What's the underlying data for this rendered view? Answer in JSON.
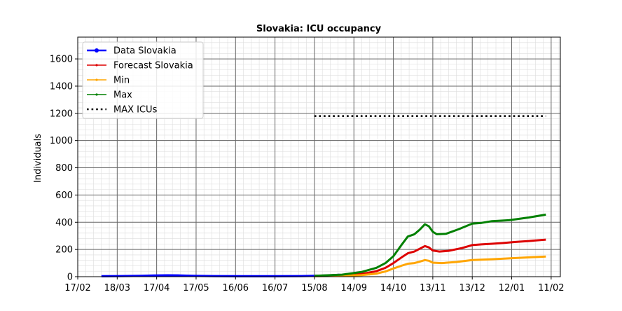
{
  "chart_data": {
    "type": "line",
    "title": "Slovakia: ICU occupancy",
    "ylabel": "Individuals",
    "xlabel": "",
    "ylim": [
      0,
      1760
    ],
    "xlim": [
      "2020-02-17",
      "2021-02-18"
    ],
    "y_ticks": [
      0,
      200,
      400,
      600,
      800,
      1000,
      1200,
      1400,
      1600
    ],
    "x_ticks": [
      {
        "date": "2020-02-17",
        "label": "17/02"
      },
      {
        "date": "2020-03-18",
        "label": "18/03"
      },
      {
        "date": "2020-04-17",
        "label": "17/04"
      },
      {
        "date": "2020-05-17",
        "label": "17/05"
      },
      {
        "date": "2020-06-16",
        "label": "16/06"
      },
      {
        "date": "2020-07-16",
        "label": "16/07"
      },
      {
        "date": "2020-08-15",
        "label": "15/08"
      },
      {
        "date": "2020-09-14",
        "label": "14/09"
      },
      {
        "date": "2020-10-14",
        "label": "14/10"
      },
      {
        "date": "2020-11-13",
        "label": "13/11"
      },
      {
        "date": "2020-12-13",
        "label": "13/12"
      },
      {
        "date": "2021-01-12",
        "label": "12/01"
      },
      {
        "date": "2021-02-11",
        "label": "11/02"
      }
    ],
    "grid": true,
    "legend": "top-left",
    "series": [
      {
        "name": "Data Slovakia",
        "color": "#0000ff",
        "style": "line-dot-thick",
        "points": [
          [
            "2020-03-06",
            3
          ],
          [
            "2020-03-20",
            4
          ],
          [
            "2020-04-05",
            6
          ],
          [
            "2020-04-15",
            8
          ],
          [
            "2020-04-25",
            10
          ],
          [
            "2020-05-05",
            9
          ],
          [
            "2020-05-15",
            6
          ],
          [
            "2020-05-30",
            4
          ],
          [
            "2020-06-20",
            3
          ],
          [
            "2020-07-15",
            3
          ],
          [
            "2020-08-05",
            4
          ],
          [
            "2020-08-15",
            6
          ],
          [
            "2020-08-25",
            9
          ],
          [
            "2020-09-03",
            14
          ]
        ]
      },
      {
        "name": "Forecast Slovakia",
        "color": "#dd0000",
        "style": "line-thin-marker",
        "points": [
          [
            "2020-08-15",
            5
          ],
          [
            "2020-09-05",
            10
          ],
          [
            "2020-09-20",
            20
          ],
          [
            "2020-10-01",
            40
          ],
          [
            "2020-10-08",
            65
          ],
          [
            "2020-10-14",
            100
          ],
          [
            "2020-10-20",
            140
          ],
          [
            "2020-10-25",
            172
          ],
          [
            "2020-10-30",
            185
          ],
          [
            "2020-11-03",
            205
          ],
          [
            "2020-11-07",
            225
          ],
          [
            "2020-11-10",
            215
          ],
          [
            "2020-11-13",
            192
          ],
          [
            "2020-11-18",
            185
          ],
          [
            "2020-11-25",
            190
          ],
          [
            "2020-12-05",
            210
          ],
          [
            "2020-12-13",
            232
          ],
          [
            "2020-12-20",
            237
          ],
          [
            "2020-12-28",
            242
          ],
          [
            "2021-01-05",
            247
          ],
          [
            "2021-01-15",
            255
          ],
          [
            "2021-01-25",
            262
          ],
          [
            "2021-02-07",
            272
          ]
        ]
      },
      {
        "name": "Min",
        "color": "#ffa500",
        "style": "line-thin-marker",
        "points": [
          [
            "2020-08-15",
            3
          ],
          [
            "2020-09-05",
            6
          ],
          [
            "2020-09-20",
            12
          ],
          [
            "2020-10-01",
            22
          ],
          [
            "2020-10-08",
            38
          ],
          [
            "2020-10-14",
            60
          ],
          [
            "2020-10-20",
            80
          ],
          [
            "2020-10-25",
            95
          ],
          [
            "2020-10-30",
            100
          ],
          [
            "2020-11-03",
            110
          ],
          [
            "2020-11-07",
            122
          ],
          [
            "2020-11-10",
            117
          ],
          [
            "2020-11-13",
            103
          ],
          [
            "2020-11-20",
            100
          ],
          [
            "2020-12-01",
            108
          ],
          [
            "2020-12-13",
            122
          ],
          [
            "2020-12-28",
            128
          ],
          [
            "2021-01-15",
            137
          ],
          [
            "2021-02-07",
            148
          ]
        ]
      },
      {
        "name": "Max",
        "color": "#008000",
        "style": "line-thin-marker",
        "points": [
          [
            "2020-08-15",
            6
          ],
          [
            "2020-09-05",
            15
          ],
          [
            "2020-09-20",
            35
          ],
          [
            "2020-10-01",
            65
          ],
          [
            "2020-10-08",
            100
          ],
          [
            "2020-10-14",
            150
          ],
          [
            "2020-10-20",
            230
          ],
          [
            "2020-10-25",
            295
          ],
          [
            "2020-10-30",
            312
          ],
          [
            "2020-11-03",
            345
          ],
          [
            "2020-11-07",
            385
          ],
          [
            "2020-11-10",
            370
          ],
          [
            "2020-11-13",
            330
          ],
          [
            "2020-11-16",
            312
          ],
          [
            "2020-11-23",
            315
          ],
          [
            "2020-12-03",
            350
          ],
          [
            "2020-12-13",
            390
          ],
          [
            "2020-12-20",
            395
          ],
          [
            "2020-12-28",
            408
          ],
          [
            "2021-01-10",
            415
          ],
          [
            "2021-01-25",
            435
          ],
          [
            "2021-02-07",
            456
          ]
        ]
      },
      {
        "name": "MAX ICUs",
        "color": "#000000",
        "style": "dotted",
        "points": [
          [
            "2020-08-15",
            1180
          ],
          [
            "2021-02-07",
            1180
          ]
        ]
      }
    ]
  }
}
